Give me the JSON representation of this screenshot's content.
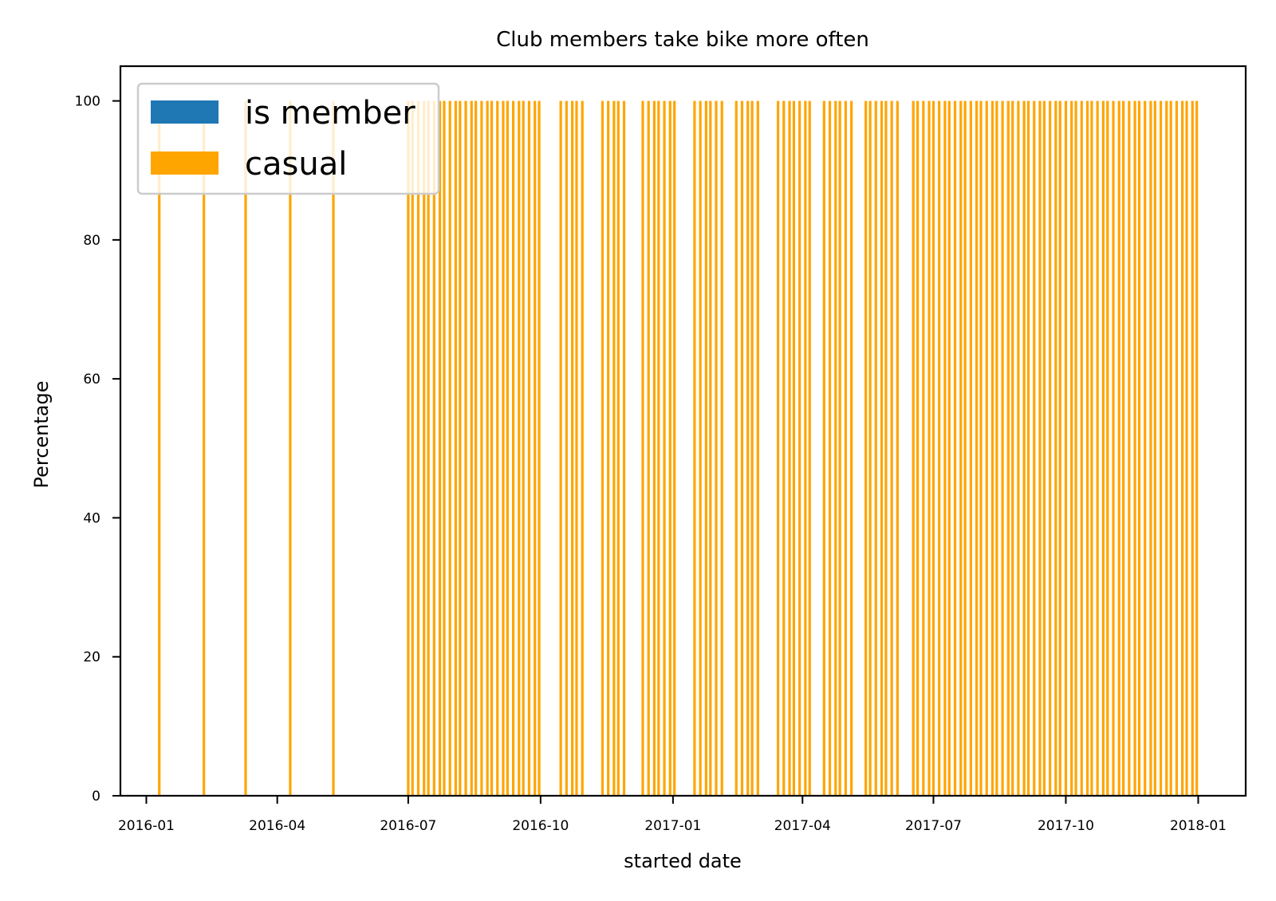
{
  "chart_data": {
    "type": "bar",
    "title": "Club members take bike more often",
    "xlabel": "started date",
    "ylabel": "Percentage",
    "x_axis_type": "date",
    "xlim": [
      "2015-12-14",
      "2018-02-03"
    ],
    "ylim": [
      0,
      105
    ],
    "x_ticks": [
      "2016-01",
      "2016-04",
      "2016-07",
      "2016-10",
      "2017-01",
      "2017-04",
      "2017-07",
      "2017-10",
      "2018-01"
    ],
    "y_ticks": [
      0,
      20,
      40,
      60,
      80,
      100
    ],
    "stacked": true,
    "grid": false,
    "legend_position": "top-left",
    "series": [
      {
        "name": "is member",
        "color": "#1f77b4",
        "values_note": "0 on every date shown"
      },
      {
        "name": "casual",
        "color": "#ffa500",
        "value": 100,
        "dates": [
          "2016-01-10",
          "2016-02-10",
          "2016-03-10",
          "2016-04-10",
          "2016-05-10",
          "2016-07-01",
          "2016-07-04",
          "2016-07-08",
          "2016-07-12",
          "2016-07-15",
          "2016-07-19",
          "2016-07-23",
          "2016-07-26",
          "2016-07-30",
          "2016-08-03",
          "2016-08-06",
          "2016-08-10",
          "2016-08-14",
          "2016-08-17",
          "2016-08-21",
          "2016-08-25",
          "2016-08-28",
          "2016-09-01",
          "2016-09-05",
          "2016-09-08",
          "2016-09-12",
          "2016-09-16",
          "2016-09-19",
          "2016-09-23",
          "2016-09-27",
          "2016-09-30",
          "2016-10-15",
          "2016-10-19",
          "2016-10-23",
          "2016-10-26",
          "2016-10-30",
          "2016-11-13",
          "2016-11-17",
          "2016-11-21",
          "2016-11-24",
          "2016-11-28",
          "2016-12-11",
          "2016-12-15",
          "2016-12-19",
          "2016-12-22",
          "2016-12-26",
          "2016-12-30",
          "2017-01-02",
          "2017-01-16",
          "2017-01-20",
          "2017-01-24",
          "2017-01-27",
          "2017-01-31",
          "2017-02-04",
          "2017-02-14",
          "2017-02-18",
          "2017-02-22",
          "2017-02-25",
          "2017-03-01",
          "2017-03-15",
          "2017-03-19",
          "2017-03-23",
          "2017-03-26",
          "2017-03-30",
          "2017-04-03",
          "2017-04-06",
          "2017-04-16",
          "2017-04-20",
          "2017-04-24",
          "2017-04-27",
          "2017-05-01",
          "2017-05-05",
          "2017-05-15",
          "2017-05-18",
          "2017-05-22",
          "2017-05-26",
          "2017-05-29",
          "2017-06-02",
          "2017-06-06",
          "2017-06-17",
          "2017-06-20",
          "2017-06-24",
          "2017-06-28",
          "2017-07-01",
          "2017-07-05",
          "2017-07-09",
          "2017-07-12",
          "2017-07-16",
          "2017-07-20",
          "2017-07-23",
          "2017-07-27",
          "2017-07-31",
          "2017-08-03",
          "2017-08-07",
          "2017-08-11",
          "2017-08-14",
          "2017-08-18",
          "2017-08-22",
          "2017-08-25",
          "2017-08-29",
          "2017-09-02",
          "2017-09-05",
          "2017-09-09",
          "2017-09-13",
          "2017-09-16",
          "2017-09-20",
          "2017-09-24",
          "2017-09-27",
          "2017-10-01",
          "2017-10-05",
          "2017-10-08",
          "2017-10-12",
          "2017-10-16",
          "2017-10-19",
          "2017-10-23",
          "2017-10-27",
          "2017-10-30",
          "2017-11-03",
          "2017-11-07",
          "2017-11-10",
          "2017-11-14",
          "2017-11-18",
          "2017-11-21",
          "2017-11-25",
          "2017-11-29",
          "2017-12-02",
          "2017-12-06",
          "2017-12-10",
          "2017-12-13",
          "2017-12-17",
          "2017-12-21",
          "2017-12-24",
          "2017-12-28",
          "2017-12-31"
        ]
      }
    ]
  }
}
